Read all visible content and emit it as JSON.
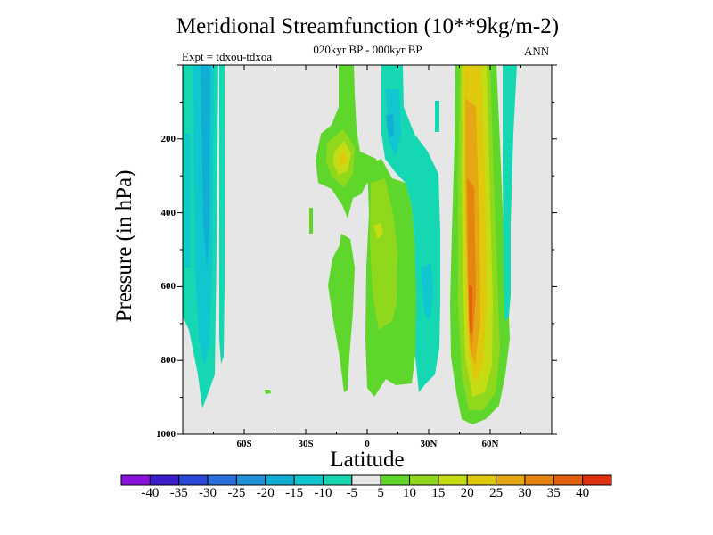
{
  "chart_data": {
    "type": "heatmap",
    "title": "Meridional Streamfunction (10**9kg/m-2)",
    "subtitle": "020kyr BP - 000kyr BP",
    "left_label": "Expt = tdxou-tdxoa",
    "right_label": "ANN",
    "xlabel": "Latitude",
    "ylabel": "Pressure (in hPa)",
    "xlim": [
      -90,
      90
    ],
    "ylim": [
      1000,
      0
    ],
    "x_ticks": [
      {
        "value": -60,
        "label": "60S"
      },
      {
        "value": -30,
        "label": "30S"
      },
      {
        "value": 0,
        "label": "0"
      },
      {
        "value": 30,
        "label": "30N"
      },
      {
        "value": 60,
        "label": "60N"
      }
    ],
    "y_ticks": [
      {
        "value": 200,
        "label": "200"
      },
      {
        "value": 400,
        "label": "400"
      },
      {
        "value": 600,
        "label": "600"
      },
      {
        "value": 800,
        "label": "800"
      },
      {
        "value": 1000,
        "label": "1000"
      }
    ],
    "background_color": "#e6e6e6",
    "colorbar": {
      "levels": [
        "-40",
        "-35",
        "-30",
        "-25",
        "-20",
        "-15",
        "-10",
        "-5",
        "5",
        "10",
        "15",
        "20",
        "25",
        "30",
        "35",
        "40"
      ],
      "colors": [
        "#8a12e0",
        "#3c1ccd",
        "#2846d8",
        "#2a6fdc",
        "#1f92d8",
        "#11aed4",
        "#10c6cf",
        "#15d8b2",
        "#e8e8e8",
        "#5fd62b",
        "#90d81c",
        "#c5dc14",
        "#e0c80d",
        "#e5a713",
        "#e5850f",
        "#e4600d",
        "#df3010"
      ]
    },
    "features": [
      {
        "name": "SH high-latitude negative bands",
        "lat_range": [
          -90,
          -68
        ],
        "level_range": [
          0,
          930
        ],
        "min_value": -20
      },
      {
        "name": "SH narrow negative band",
        "lat_range": [
          -68,
          -65
        ],
        "level_range": [
          0,
          800
        ],
        "min_value": -10
      },
      {
        "name": "tropical upper positive cell",
        "lat_range": [
          -26,
          -8
        ],
        "level_range": [
          0,
          420
        ],
        "max_value": 20
      },
      {
        "name": "tropical lower positive column",
        "lat_range": [
          -18,
          -5
        ],
        "level_range": [
          380,
          940
        ],
        "max_value": 10
      },
      {
        "name": "equatorial positive column",
        "lat_range": [
          0,
          18
        ],
        "level_range": [
          120,
          940
        ],
        "max_value": 15
      },
      {
        "name": "NH subtropical negative column",
        "lat_range": [
          9,
          33
        ],
        "level_range": [
          0,
          920
        ],
        "min_value": -15
      },
      {
        "name": "NH midlatitude positive column",
        "lat_range": [
          45,
          66
        ],
        "level_range": [
          0,
          975
        ],
        "max_value": 30
      },
      {
        "name": "NH high-latitude negative band",
        "lat_range": [
          67,
          73
        ],
        "level_range": [
          0,
          720
        ],
        "min_value": -10
      }
    ]
  }
}
